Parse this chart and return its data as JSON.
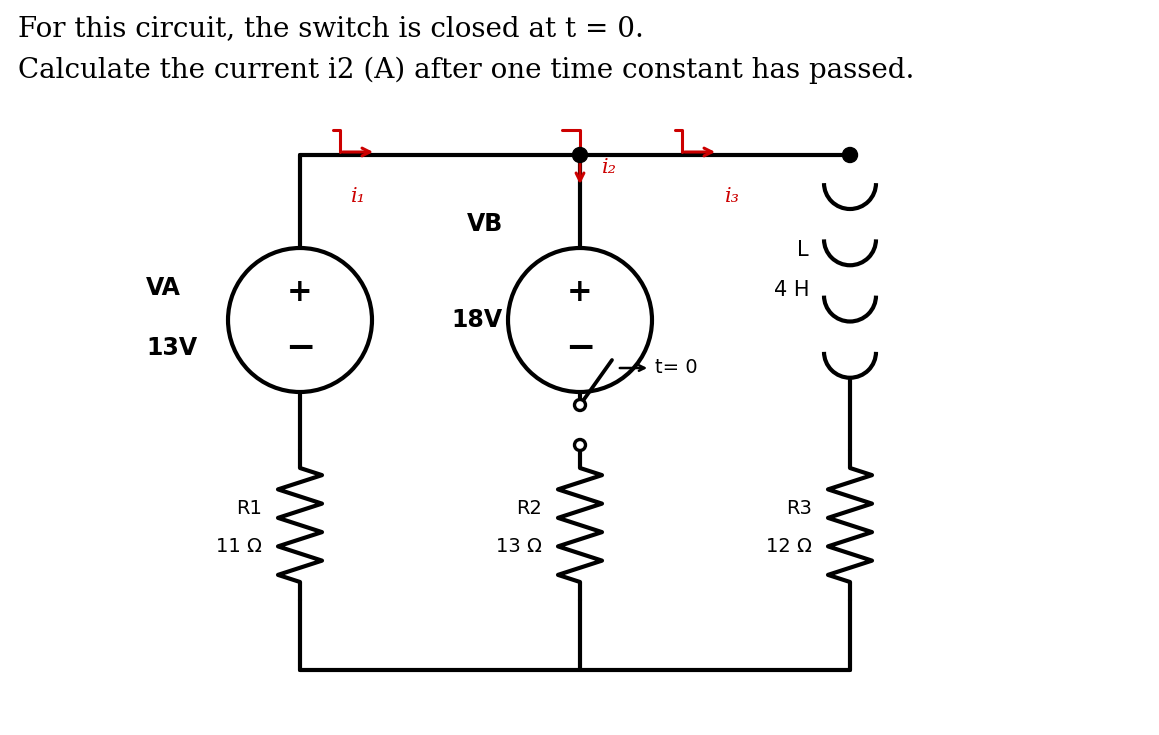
{
  "title_line1": "For this circuit, the switch is closed at t = 0.",
  "title_line2": "Calculate the current i2 (A) after one time constant has passed.",
  "bg_color": "#ffffff",
  "text_color": "#000000",
  "red_color": "#cc0000",
  "line_width": 3.0,
  "va_label": "VA",
  "va_voltage": "13V",
  "vb_label": "VB",
  "vb_voltage": "18V",
  "inductor_label": "L",
  "inductor_value": "4 H",
  "r1_label": "R1",
  "r1_value": "11 Ω",
  "r2_label": "R2",
  "r2_value": "13 Ω",
  "r3_label": "R3",
  "r3_value": "12 Ω"
}
